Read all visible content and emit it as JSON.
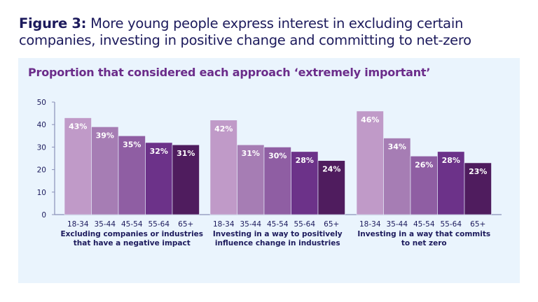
{
  "title": {
    "prefix": "Figure 3:",
    "text": "More young people express interest in excluding certain companies, investing in positive change and committing to net-zero"
  },
  "chart_data": {
    "type": "bar",
    "title": "Proportion that considered each approach ‘extremely important’",
    "ylim": [
      0,
      50
    ],
    "yticks": [
      0,
      10,
      20,
      30,
      40,
      50
    ],
    "grid": false,
    "categories": [
      "18-34",
      "35-44",
      "45-54",
      "55-64",
      "65+"
    ],
    "colors": [
      "#c09ac8",
      "#a67db4",
      "#8f5ea3",
      "#6c3289",
      "#4f1c5e"
    ],
    "groups": [
      {
        "label": [
          "Excluding companies or industries",
          "that have a negative impact"
        ],
        "values": [
          43,
          39,
          35,
          32,
          31
        ],
        "data_labels": [
          "43%",
          "39%",
          "35%",
          "32%",
          "31%"
        ]
      },
      {
        "label": [
          "Investing in a way to positively",
          "influence change in industries"
        ],
        "values": [
          42,
          31,
          30,
          28,
          24
        ],
        "data_labels": [
          "42%",
          "31%",
          "30%",
          "28%",
          "24%"
        ]
      },
      {
        "label": [
          "Investing in a way that commits",
          "to net zero"
        ],
        "values": [
          46,
          34,
          26,
          28,
          23
        ],
        "data_labels": [
          "46%",
          "34%",
          "26%",
          "28%",
          "23%"
        ]
      }
    ]
  }
}
